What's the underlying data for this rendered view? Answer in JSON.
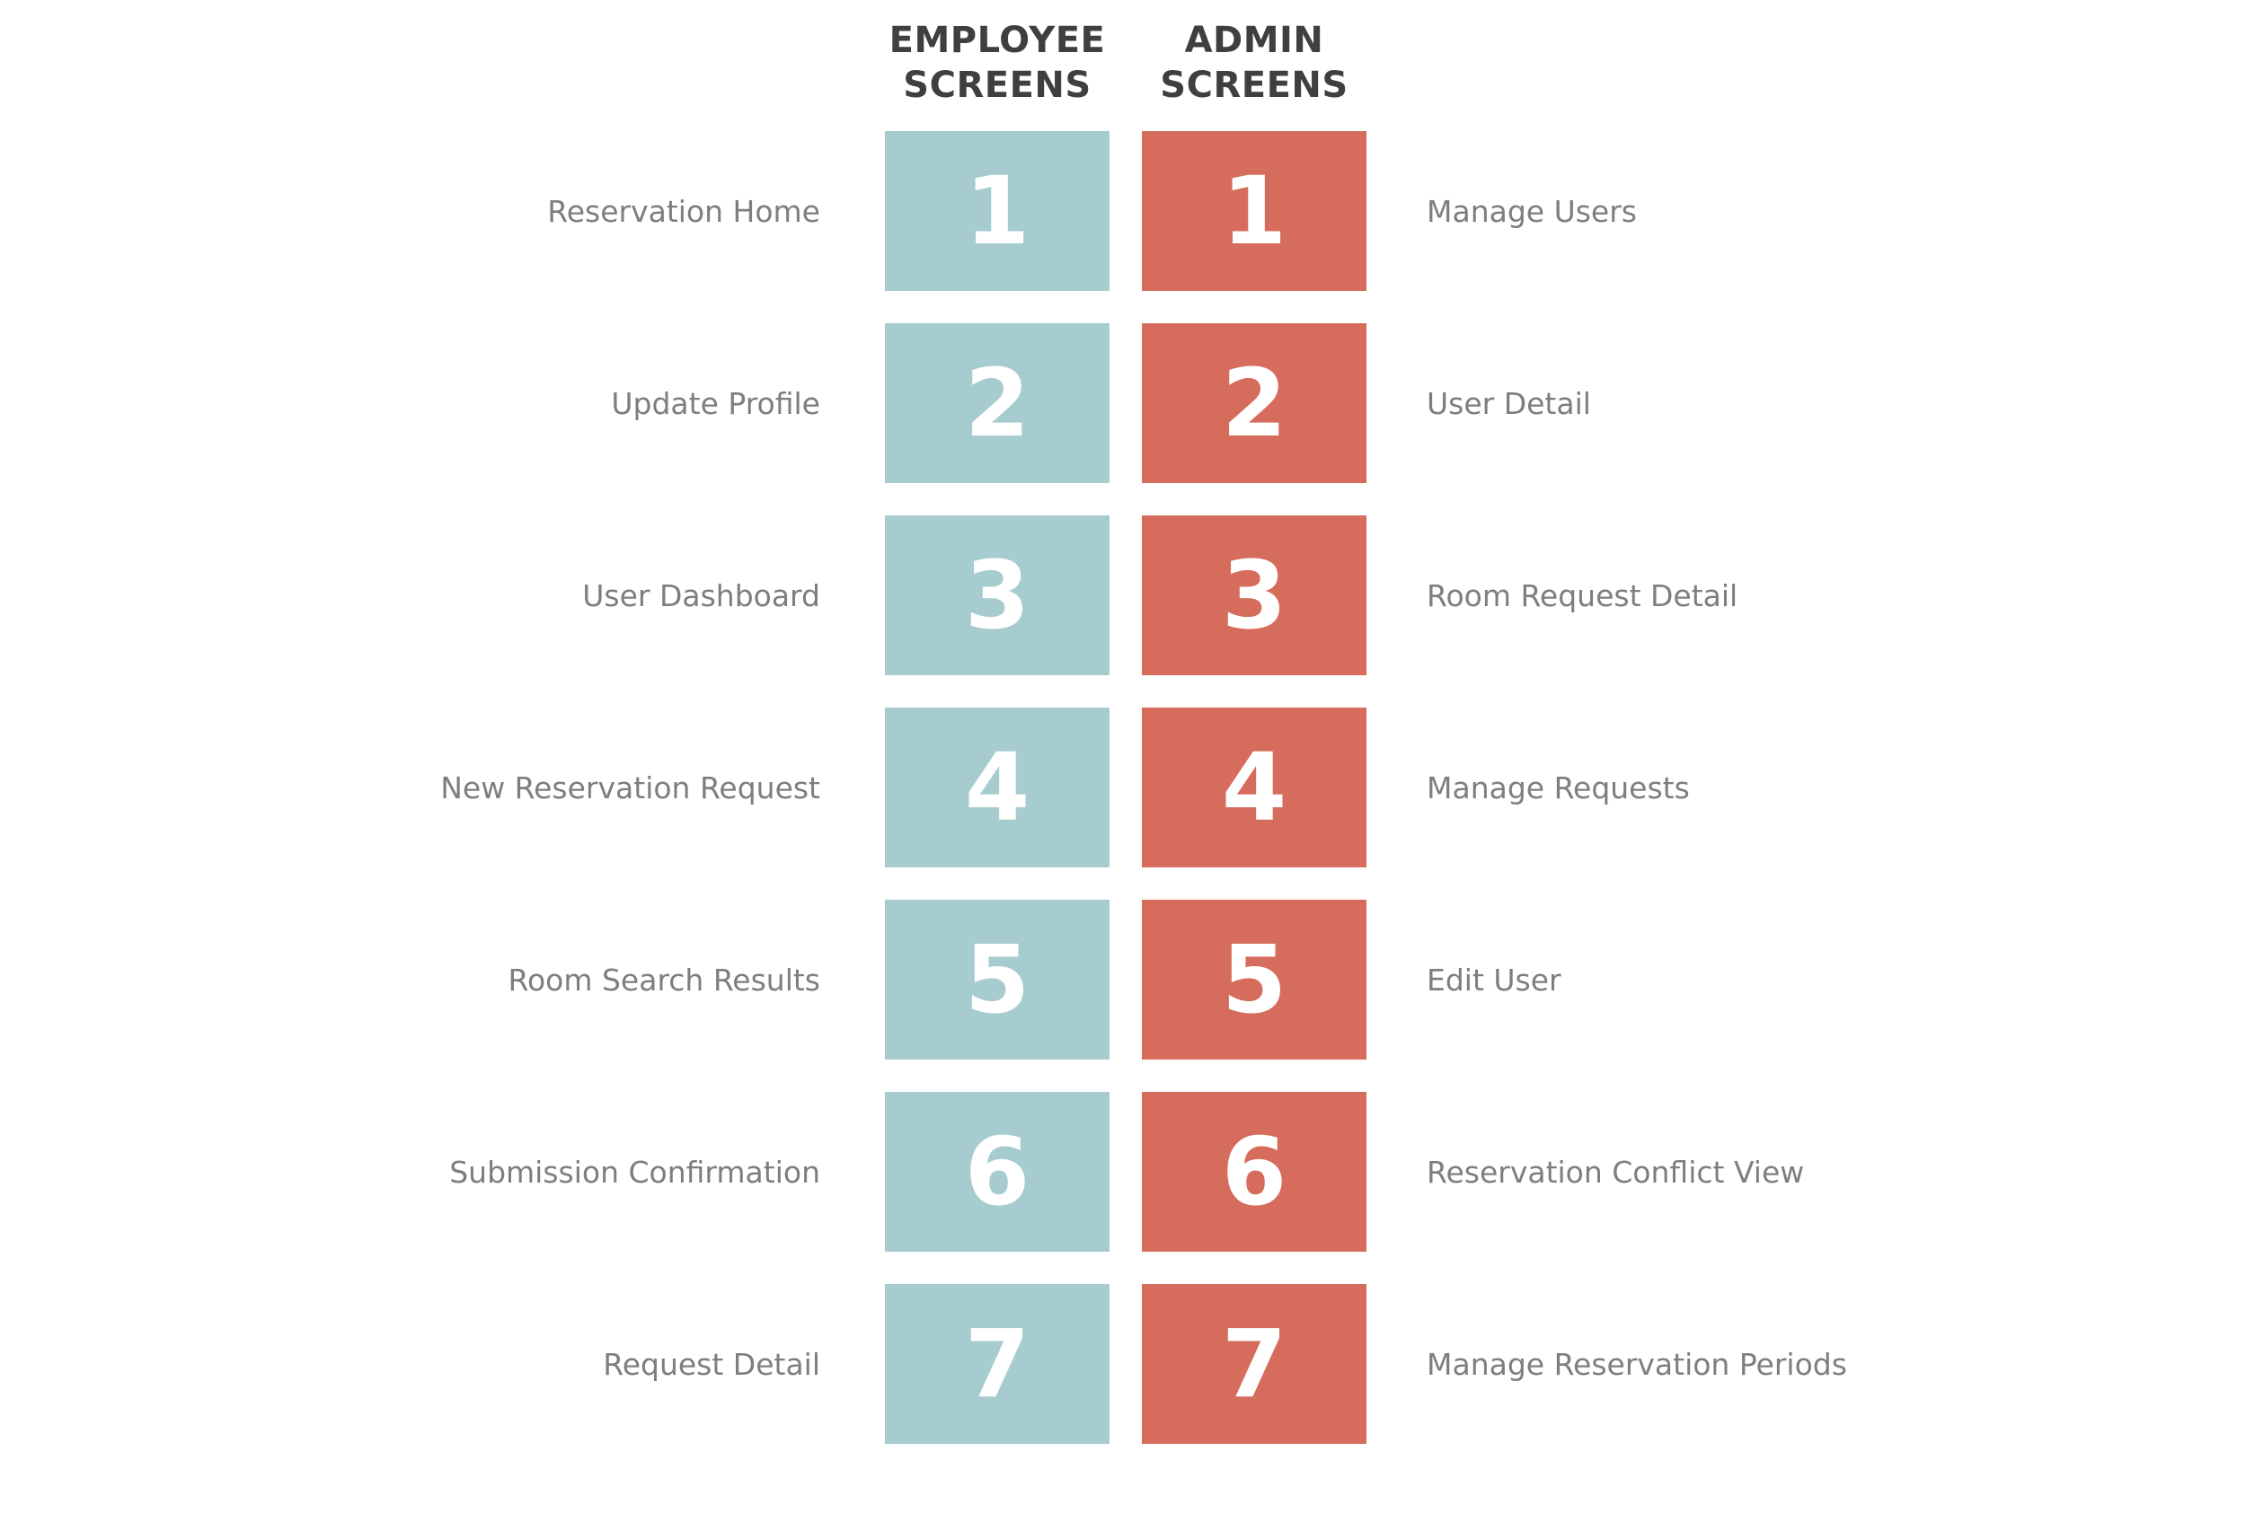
{
  "headers": {
    "employee": [
      "EMPLOYEE",
      "SCREENS"
    ],
    "admin": [
      "ADMIN",
      "SCREENS"
    ]
  },
  "colors": {
    "employee_tile": "#a7cccf",
    "admin_tile": "#d66c5b",
    "label_text": "#7e7e7e",
    "header_text": "#3f3f3f"
  },
  "rows": [
    {
      "number": "1",
      "employee_label": "Reservation Home",
      "admin_label": "Manage Users"
    },
    {
      "number": "2",
      "employee_label": "Update Profile",
      "admin_label": "User Detail"
    },
    {
      "number": "3",
      "employee_label": "User Dashboard",
      "admin_label": "Room Request Detail"
    },
    {
      "number": "4",
      "employee_label": "New Reservation Request",
      "admin_label": "Manage Requests"
    },
    {
      "number": "5",
      "employee_label": "Room Search Results",
      "admin_label": "Edit User"
    },
    {
      "number": "6",
      "employee_label": "Submission Confirmation",
      "admin_label": "Reservation Conflict View"
    },
    {
      "number": "7",
      "employee_label": "Request Detail",
      "admin_label": "Manage Reservation Periods"
    }
  ]
}
